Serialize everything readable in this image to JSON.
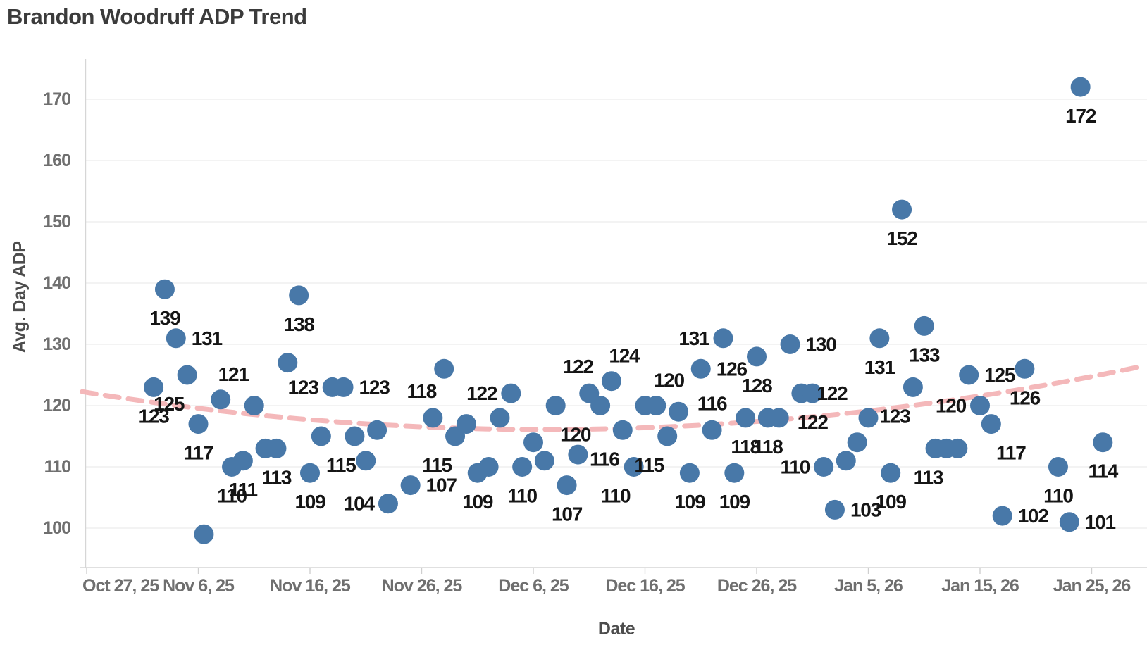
{
  "title": "Brandon Woodruff ADP Trend",
  "colors": {
    "dot": "#4878a8",
    "trend": "#f3b4b6",
    "grid": "#ececec",
    "axis": "#d6d6d6",
    "tick_text": "#6f6f6f",
    "label_text": "#151515",
    "title_text": "#3b3b3b"
  },
  "chart_data": {
    "type": "scatter",
    "title": "Brandon Woodruff ADP Trend",
    "xlabel": "Date",
    "ylabel": "Avg. Day ADP",
    "ylim": [
      95,
      177
    ],
    "grid": "horizontal-only",
    "legend": "none",
    "yticks": [
      100,
      110,
      120,
      130,
      140,
      150,
      160,
      170
    ],
    "xticks": [
      {
        "day": 0,
        "label": "Oct 27, 25"
      },
      {
        "day": 10,
        "label": "Nov 6, 25"
      },
      {
        "day": 20,
        "label": "Nov 16, 25"
      },
      {
        "day": 30,
        "label": "Nov 26, 25"
      },
      {
        "day": 40,
        "label": "Dec 6, 25"
      },
      {
        "day": 50,
        "label": "Dec 16, 25"
      },
      {
        "day": 60,
        "label": "Dec 26, 25"
      },
      {
        "day": 70,
        "label": "Jan 5, 26"
      },
      {
        "day": 80,
        "label": "Jan 15, 26"
      },
      {
        "day": 90,
        "label": "Jan 25, 26"
      }
    ],
    "trend_line": {
      "style": "dashed",
      "shape": "parabola",
      "min_value": 116.1,
      "min_day": 41,
      "curvature": 0.0036,
      "start_value": 122.2,
      "end_value": 126.6
    },
    "points": [
      {
        "day": 6,
        "date": "Nov 2, 25",
        "value": 123,
        "label": "123",
        "lp": "b"
      },
      {
        "day": 7,
        "date": "Nov 3, 25",
        "value": 139,
        "label": "139",
        "lp": "b"
      },
      {
        "day": 8,
        "date": "Nov 4, 25",
        "value": 131,
        "label": "131",
        "lp": "r"
      },
      {
        "day": 9,
        "date": "Nov 5, 25",
        "value": 125,
        "label": "125",
        "lp": "bl"
      },
      {
        "day": 10,
        "date": "Nov 6, 25",
        "value": 117,
        "label": "117",
        "lp": "b"
      },
      {
        "day": 10.5,
        "date": "Nov 6, 25",
        "value": 99,
        "label": "",
        "lp": ""
      },
      {
        "day": 12,
        "date": "Nov 8, 25",
        "value": 121,
        "label": "121",
        "lp": "ar"
      },
      {
        "day": 13,
        "date": "Nov 9, 25",
        "value": 110,
        "label": "110",
        "lp": "b"
      },
      {
        "day": 14,
        "date": "Nov 10, 25",
        "value": 111,
        "label": "111",
        "lp": "b"
      },
      {
        "day": 15,
        "date": "Nov 11, 25",
        "value": 120,
        "label": "",
        "lp": ""
      },
      {
        "day": 16,
        "date": "Nov 12, 25",
        "value": 113,
        "label": "",
        "lp": ""
      },
      {
        "day": 17,
        "date": "Nov 13, 25",
        "value": 113,
        "label": "113",
        "lp": "b"
      },
      {
        "day": 18,
        "date": "Nov 14, 25",
        "value": 127,
        "label": "",
        "lp": ""
      },
      {
        "day": 19,
        "date": "Nov 15, 25",
        "value": 138,
        "label": "138",
        "lp": "b"
      },
      {
        "day": 20,
        "date": "Nov 16, 25",
        "value": 109,
        "label": "109",
        "lp": "b"
      },
      {
        "day": 21,
        "date": "Nov 17, 25",
        "value": 115,
        "label": "115",
        "lp": "br"
      },
      {
        "day": 22,
        "date": "Nov 18, 25",
        "value": 123,
        "label": "123",
        "lp": "l"
      },
      {
        "day": 23,
        "date": "Nov 19, 25",
        "value": 123,
        "label": "123",
        "lp": "r"
      },
      {
        "day": 24,
        "date": "Nov 20, 25",
        "value": 115,
        "label": "",
        "lp": ""
      },
      {
        "day": 25,
        "date": "Nov 21, 25",
        "value": 111,
        "label": "",
        "lp": ""
      },
      {
        "day": 26,
        "date": "Nov 22, 25",
        "value": 116,
        "label": "",
        "lp": ""
      },
      {
        "day": 27,
        "date": "Nov 23, 25",
        "value": 104,
        "label": "104",
        "lp": "l"
      },
      {
        "day": 29,
        "date": "Nov 25, 25",
        "value": 107,
        "label": "107",
        "lp": "r"
      },
      {
        "day": 31,
        "date": "Nov 27, 25",
        "value": 118,
        "label": "118",
        "lp": "al"
      },
      {
        "day": 32,
        "date": "Nov 28, 25",
        "value": 126,
        "label": "",
        "lp": ""
      },
      {
        "day": 33,
        "date": "Nov 29, 25",
        "value": 115,
        "label": "115",
        "lp": "bl"
      },
      {
        "day": 34,
        "date": "Nov 30, 25",
        "value": 117,
        "label": "",
        "lp": ""
      },
      {
        "day": 35,
        "date": "Dec 1, 25",
        "value": 109,
        "label": "109",
        "lp": "b"
      },
      {
        "day": 36,
        "date": "Dec 2, 25",
        "value": 110,
        "label": "",
        "lp": ""
      },
      {
        "day": 37,
        "date": "Dec 3, 25",
        "value": 118,
        "label": "",
        "lp": ""
      },
      {
        "day": 38,
        "date": "Dec 4, 25",
        "value": 122,
        "label": "122",
        "lp": "l"
      },
      {
        "day": 39,
        "date": "Dec 5, 25",
        "value": 110,
        "label": "110",
        "lp": "b"
      },
      {
        "day": 40,
        "date": "Dec 6, 25",
        "value": 114,
        "label": "",
        "lp": ""
      },
      {
        "day": 41,
        "date": "Dec 7, 25",
        "value": 111,
        "label": "",
        "lp": ""
      },
      {
        "day": 42,
        "date": "Dec 8, 25",
        "value": 120,
        "label": "120",
        "lp": "br"
      },
      {
        "day": 43,
        "date": "Dec 9, 25",
        "value": 107,
        "label": "107",
        "lp": "b"
      },
      {
        "day": 44,
        "date": "Dec 10, 25",
        "value": 112,
        "label": "",
        "lp": ""
      },
      {
        "day": 45,
        "date": "Dec 11, 25",
        "value": 122,
        "label": "122",
        "lp": "al"
      },
      {
        "day": 46,
        "date": "Dec 12, 25",
        "value": 120,
        "label": "",
        "lp": ""
      },
      {
        "day": 47,
        "date": "Dec 13, 25",
        "value": 124,
        "label": "124",
        "lp": "ar"
      },
      {
        "day": 48,
        "date": "Dec 14, 25",
        "value": 116,
        "label": "116",
        "lp": "bl"
      },
      {
        "day": 49,
        "date": "Dec 15, 25",
        "value": 110,
        "label": "110",
        "lp": "bl"
      },
      {
        "day": 50,
        "date": "Dec 16, 25",
        "value": 120,
        "label": "",
        "lp": ""
      },
      {
        "day": 51,
        "date": "Dec 17, 25",
        "value": 120,
        "label": "120",
        "lp": "ar"
      },
      {
        "day": 52,
        "date": "Dec 18, 25",
        "value": 115,
        "label": "115",
        "lp": "bl"
      },
      {
        "day": 53,
        "date": "Dec 19, 25",
        "value": 119,
        "label": "",
        "lp": ""
      },
      {
        "day": 54,
        "date": "Dec 20, 25",
        "value": 109,
        "label": "109",
        "lp": "b"
      },
      {
        "day": 55,
        "date": "Dec 21, 25",
        "value": 126,
        "label": "126",
        "lp": "r"
      },
      {
        "day": 56,
        "date": "Dec 22, 25",
        "value": 116,
        "label": "116",
        "lp": "a"
      },
      {
        "day": 57,
        "date": "Dec 23, 25",
        "value": 131,
        "label": "131",
        "lp": "l"
      },
      {
        "day": 58,
        "date": "Dec 24, 25",
        "value": 109,
        "label": "109",
        "lp": "b"
      },
      {
        "day": 59,
        "date": "Dec 25, 25",
        "value": 118,
        "label": "118",
        "lp": "b"
      },
      {
        "day": 60,
        "date": "Dec 26, 25",
        "value": 128,
        "label": "128",
        "lp": "b"
      },
      {
        "day": 61,
        "date": "Dec 27, 25",
        "value": 118,
        "label": "118",
        "lp": "b"
      },
      {
        "day": 62,
        "date": "Dec 28, 25",
        "value": 118,
        "label": "",
        "lp": ""
      },
      {
        "day": 63,
        "date": "Dec 29, 25",
        "value": 130,
        "label": "130",
        "lp": "r"
      },
      {
        "day": 64,
        "date": "Dec 30, 25",
        "value": 122,
        "label": "122",
        "lp": "r"
      },
      {
        "day": 65,
        "date": "Dec 31, 25",
        "value": 122,
        "label": "122",
        "lp": "b"
      },
      {
        "day": 66,
        "date": "Jan 1, 26",
        "value": 110,
        "label": "110",
        "lp": "l"
      },
      {
        "day": 67,
        "date": "Jan 2, 26",
        "value": 103,
        "label": "103",
        "lp": "r"
      },
      {
        "day": 68,
        "date": "Jan 3, 26",
        "value": 111,
        "label": "",
        "lp": ""
      },
      {
        "day": 69,
        "date": "Jan 4, 26",
        "value": 114,
        "label": "",
        "lp": ""
      },
      {
        "day": 70,
        "date": "Jan 5, 26",
        "value": 118,
        "label": "",
        "lp": ""
      },
      {
        "day": 71,
        "date": "Jan 6, 26",
        "value": 131,
        "label": "131",
        "lp": "b"
      },
      {
        "day": 72,
        "date": "Jan 7, 26",
        "value": 109,
        "label": "109",
        "lp": "b"
      },
      {
        "day": 73,
        "date": "Jan 8, 26",
        "value": 152,
        "label": "152",
        "lp": "b"
      },
      {
        "day": 74,
        "date": "Jan 9, 26",
        "value": 123,
        "label": "123",
        "lp": "bl"
      },
      {
        "day": 75,
        "date": "Jan 10, 26",
        "value": 133,
        "label": "133",
        "lp": "b"
      },
      {
        "day": 76,
        "date": "Jan 11, 26",
        "value": 113,
        "label": "",
        "lp": ""
      },
      {
        "day": 77,
        "date": "Jan 12, 26",
        "value": 113,
        "label": "113",
        "lp": "bl"
      },
      {
        "day": 78,
        "date": "Jan 13, 26",
        "value": 113,
        "label": "",
        "lp": ""
      },
      {
        "day": 79,
        "date": "Jan 14, 26",
        "value": 125,
        "label": "125",
        "lp": "r"
      },
      {
        "day": 80,
        "date": "Jan 15, 26",
        "value": 120,
        "label": "120",
        "lp": "l"
      },
      {
        "day": 81,
        "date": "Jan 16, 26",
        "value": 117,
        "label": "117",
        "lp": "br"
      },
      {
        "day": 82,
        "date": "Jan 17, 26",
        "value": 102,
        "label": "102",
        "lp": "r"
      },
      {
        "day": 84,
        "date": "Jan 19, 26",
        "value": 126,
        "label": "126",
        "lp": "b"
      },
      {
        "day": 87,
        "date": "Jan 22, 26",
        "value": 110,
        "label": "110",
        "lp": "b"
      },
      {
        "day": 88,
        "date": "Jan 23, 26",
        "value": 101,
        "label": "101",
        "lp": "r"
      },
      {
        "day": 89,
        "date": "Jan 24, 26",
        "value": 172,
        "label": "172",
        "lp": "b"
      },
      {
        "day": 91,
        "date": "Jan 26, 26",
        "value": 114,
        "label": "114",
        "lp": "b"
      }
    ]
  }
}
